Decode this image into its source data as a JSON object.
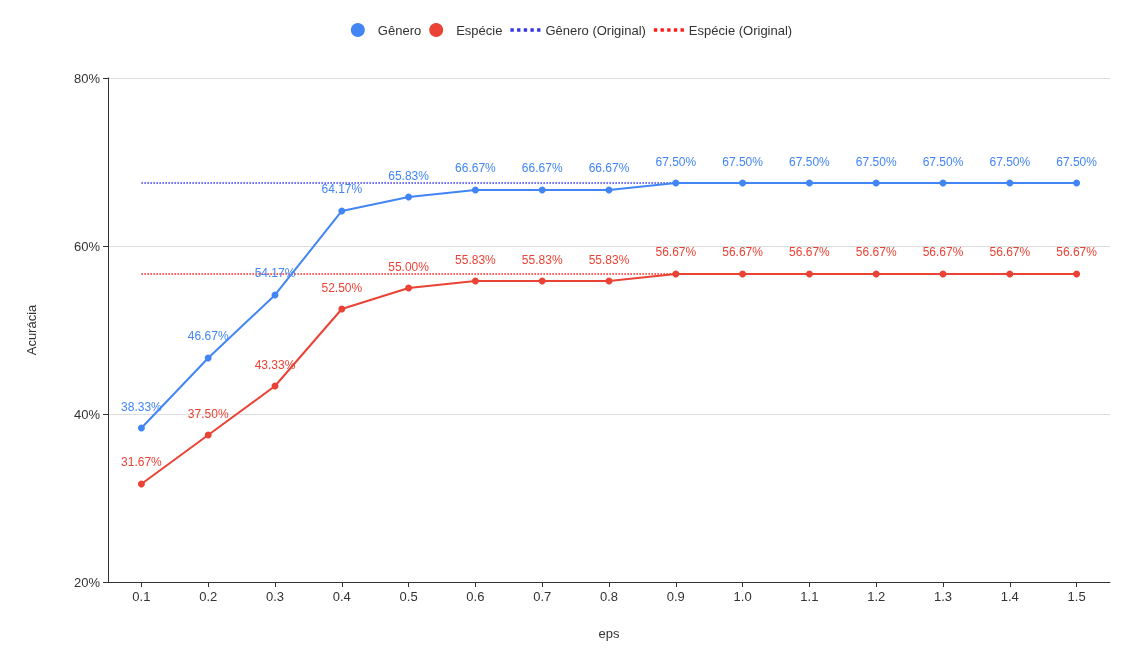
{
  "chart_data": {
    "type": "line",
    "xlabel": "eps",
    "ylabel": "Acurácia",
    "categories": [
      "0.1",
      "0.2",
      "0.3",
      "0.4",
      "0.5",
      "0.6",
      "0.7",
      "0.8",
      "0.9",
      "1.0",
      "1.1",
      "1.2",
      "1.3",
      "1.4",
      "1.5"
    ],
    "series": [
      {
        "name": "Gênero",
        "color": "#4285f4",
        "marker": "circle",
        "line_style": "solid",
        "values": [
          38.33,
          46.67,
          54.17,
          64.17,
          65.83,
          66.67,
          66.67,
          66.67,
          67.5,
          67.5,
          67.5,
          67.5,
          67.5,
          67.5,
          67.5
        ],
        "value_labels": [
          "38.33%",
          "46.67%",
          "54.17%",
          "64.17%",
          "65.83%",
          "66.67%",
          "66.67%",
          "66.67%",
          "67.50%",
          "67.50%",
          "67.50%",
          "67.50%",
          "67.50%",
          "67.50%",
          "67.50%"
        ]
      },
      {
        "name": "Espécie",
        "color": "#ea4335",
        "marker": "circle",
        "line_style": "solid",
        "values": [
          31.67,
          37.5,
          43.33,
          52.5,
          55,
          55.83,
          55.83,
          55.83,
          56.67,
          56.67,
          56.67,
          56.67,
          56.67,
          56.67,
          56.67
        ],
        "value_labels": [
          "31.67%",
          "37.50%",
          "43.33%",
          "52.50%",
          "55.00%",
          "55.83%",
          "55.83%",
          "55.83%",
          "56.67%",
          "56.67%",
          "56.67%",
          "56.67%",
          "56.67%",
          "56.67%",
          "56.67%"
        ]
      },
      {
        "name": "Gênero (Original)",
        "color": "#3333ee",
        "marker": "none",
        "line_style": "dotted",
        "values": [
          67.5,
          67.5,
          67.5,
          67.5,
          67.5,
          67.5,
          67.5,
          67.5,
          67.5,
          67.5,
          67.5,
          67.5,
          67.5,
          67.5,
          67.5
        ]
      },
      {
        "name": "Espécie (Original)",
        "color": "#ff1a1a",
        "marker": "none",
        "line_style": "dotted",
        "values": [
          56.67,
          56.67,
          56.67,
          56.67,
          56.67,
          56.67,
          56.67,
          56.67,
          56.67,
          56.67,
          56.67,
          56.67,
          56.67,
          56.67,
          56.67
        ]
      }
    ],
    "ylim": [
      20,
      80
    ],
    "yticks": [
      {
        "value": 20,
        "label": "20%"
      },
      {
        "value": 40,
        "label": "40%"
      },
      {
        "value": 60,
        "label": "60%"
      },
      {
        "value": 80,
        "label": "80%"
      }
    ],
    "grid": "y",
    "legend": "top"
  }
}
